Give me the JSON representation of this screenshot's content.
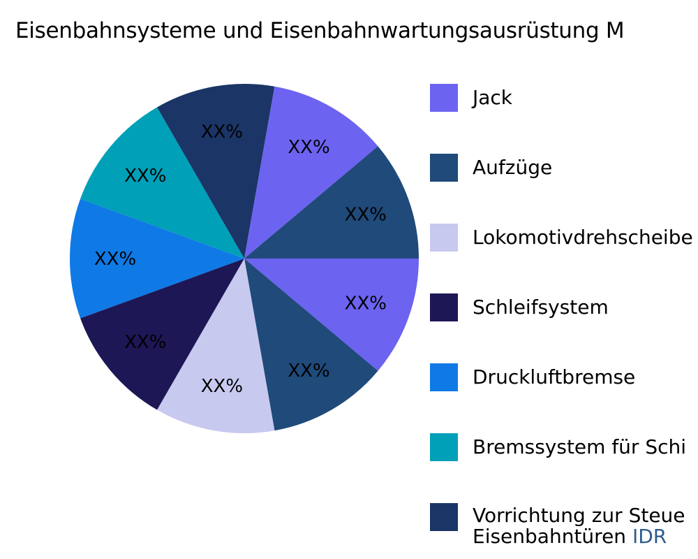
{
  "chart_data": {
    "type": "pie",
    "title": "Eisenbahnsysteme und Eisenbahnwartungsausrüstung M",
    "categories": [
      "Jack",
      "Aufzüge",
      "Lokomotivdrehscheibe",
      "Schleifsystem",
      "Druckluftbremse",
      "Bremssystem für Schi",
      "Vorrichtung zur Steue Eisenbahntüren",
      "Jack",
      "Aufzüge"
    ],
    "slices": [
      {
        "name": "Jack",
        "value": 11.1,
        "label": "XX%",
        "color": "#6c63f0",
        "start_deg": 0,
        "end_deg": 40
      },
      {
        "name": "Aufzüge",
        "value": 11.1,
        "label": "XX%",
        "color": "#1f4a7a",
        "start_deg": 40,
        "end_deg": 80
      },
      {
        "name": "Lokomotivdrehscheibe",
        "value": 11.1,
        "label": "XX%",
        "color": "#c8c9ef",
        "start_deg": 80,
        "end_deg": 120
      },
      {
        "name": "Schleifsystem",
        "value": 11.1,
        "label": "XX%",
        "color": "#1d1756",
        "start_deg": 120,
        "end_deg": 160
      },
      {
        "name": "Druckluftbremse",
        "value": 11.1,
        "label": "XX%",
        "color": "#0f7ae5",
        "start_deg": 160,
        "end_deg": 200
      },
      {
        "name": "Bremssystem für Schi",
        "value": 11.1,
        "label": "XX%",
        "color": "#00a0b8",
        "start_deg": 200,
        "end_deg": 240
      },
      {
        "name": "Vorrichtung zur Steue Eisenbahntüren",
        "value": 11.1,
        "label": "XX%",
        "color": "#1b3566",
        "start_deg": 240,
        "end_deg": 280
      },
      {
        "name": "Jack",
        "value": 11.1,
        "label": "XX%",
        "color": "#6c63f0",
        "start_deg": 280,
        "end_deg": 320
      },
      {
        "name": "Aufzüge",
        "value": 11.1,
        "label": "XX%",
        "color": "#1f4a7a",
        "start_deg": 320,
        "end_deg": 360
      }
    ],
    "data_labels": [
      "XX%",
      "XX%",
      "XX%",
      "XX%",
      "XX%",
      "XX%",
      "XX%",
      "XX%",
      "XX%"
    ],
    "legend_position": "right",
    "direction": "clockwise from 3 o'clock"
  },
  "title": "Eisenbahnsysteme und Eisenbahnwartungsausrüstung M",
  "legend": {
    "items": [
      {
        "label": "Jack",
        "color": "#6c63f0"
      },
      {
        "label": "Aufzüge",
        "color": "#1f4a7a"
      },
      {
        "label": "Lokomotivdrehscheibe",
        "color": "#c8c9ef"
      },
      {
        "label": "Schleifsystem",
        "color": "#1d1756"
      },
      {
        "label": "Druckluftbremse",
        "color": "#0f7ae5"
      },
      {
        "label": "Bremssystem für Schi",
        "color": "#00a0b8"
      },
      {
        "label": "Vorrichtung zur Steue",
        "label_line2": "Eisenbahntüren",
        "color": "#1b3566"
      }
    ]
  },
  "watermark": "IDR"
}
